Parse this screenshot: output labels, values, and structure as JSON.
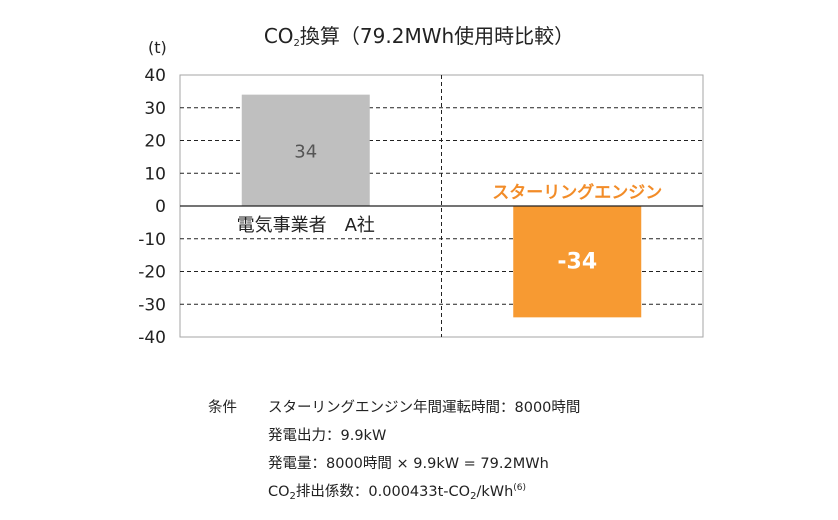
{
  "chart_data": {
    "type": "bar",
    "title": {
      "prefix": "CO",
      "sub": "2",
      "rest": "換算（79.2MWh使用時比較）"
    },
    "ylabel": "(t)",
    "ylim": [
      -40,
      40
    ],
    "yticks": [
      40,
      30,
      20,
      10,
      0,
      -10,
      -20,
      -30,
      -40
    ],
    "grid": true,
    "categories": [
      "電気事業者　A社",
      "スターリングエンジン"
    ],
    "values": [
      34,
      -34
    ],
    "data_labels": [
      "34",
      "-34"
    ],
    "colors": [
      "#bfbfbf",
      "#f79a32"
    ],
    "label_colors": [
      "#222222",
      "#f28c28"
    ],
    "value_label_colors": [
      "#555555",
      "#ffffff"
    ]
  },
  "conditions": {
    "heading": "条件",
    "line1": "スターリングエンジン年間運転時間：8000時間",
    "line2": "発電出力：9.9kW",
    "line3": "発電量：8000時間 × 9.9kW = 79.2MWh",
    "line4_a": "CO",
    "line4_sub1": "2",
    "line4_b": "排出係数：0.000433t-CO",
    "line4_sub2": "2",
    "line4_c": "/kWh",
    "line4_sup": "(6)"
  }
}
